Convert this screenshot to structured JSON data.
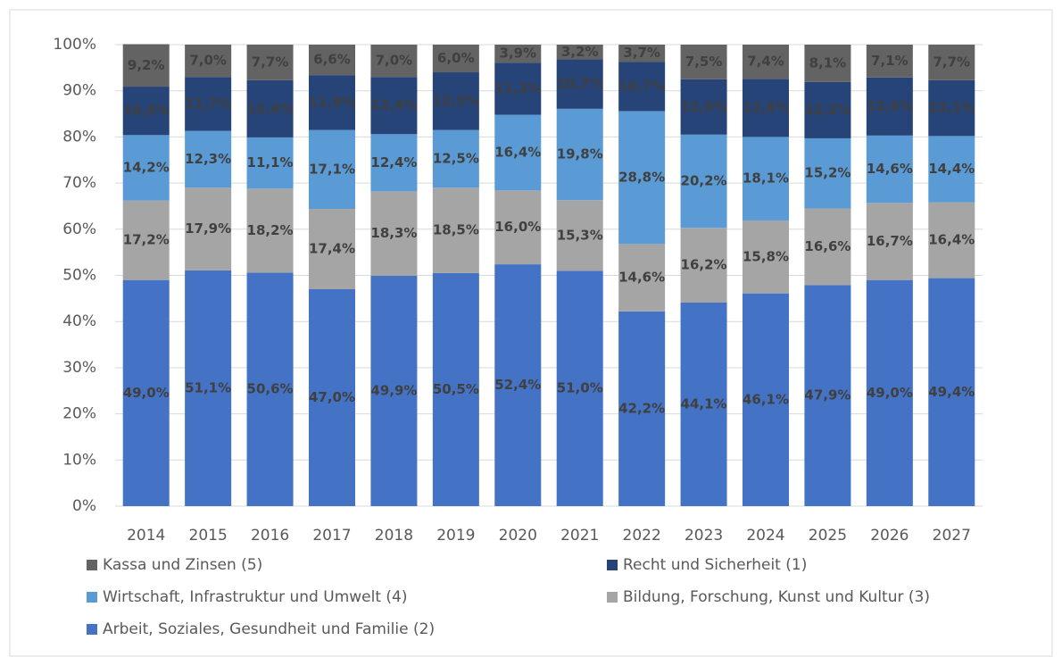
{
  "chart_data": {
    "type": "stacked_bar",
    "categories": [
      "2014",
      "2015",
      "2016",
      "2017",
      "2018",
      "2019",
      "2020",
      "2021",
      "2022",
      "2023",
      "2024",
      "2025",
      "2026",
      "2027"
    ],
    "series": [
      {
        "name": "Arbeit, Soziales, Gesundheit und Familie (2)",
        "color": "#4472c4",
        "values": [
          49.0,
          51.1,
          50.6,
          47.0,
          49.9,
          50.5,
          52.4,
          51.0,
          42.2,
          44.1,
          46.1,
          47.9,
          49.0,
          49.4
        ],
        "value_labels": [
          "49,0%",
          "51,1%",
          "50,6%",
          "47,0%",
          "49,9%",
          "50,5%",
          "52,4%",
          "51,0%",
          "42,2%",
          "44,1%",
          "46,1%",
          "47,9%",
          "49,0%",
          "49,4%"
        ]
      },
      {
        "name": "Bildung, Forschung, Kunst und Kultur (3)",
        "color": "#a5a5a5",
        "values": [
          17.2,
          17.9,
          18.2,
          17.4,
          18.3,
          18.5,
          16.0,
          15.3,
          14.6,
          16.2,
          15.8,
          16.6,
          16.7,
          16.4
        ],
        "value_labels": [
          "17,2%",
          "17,9%",
          "18,2%",
          "17,4%",
          "18,3%",
          "18,5%",
          "16,0%",
          "15,3%",
          "14,6%",
          "16,2%",
          "15,8%",
          "16,6%",
          "16,7%",
          "16,4%"
        ]
      },
      {
        "name": "Wirtschaft, Infrastruktur und Umwelt (4)",
        "color": "#5b9bd5",
        "values": [
          14.2,
          12.3,
          11.1,
          17.1,
          12.4,
          12.5,
          16.4,
          19.8,
          28.8,
          20.2,
          18.1,
          15.2,
          14.6,
          14.4
        ],
        "value_labels": [
          "14,2%",
          "12,3%",
          "11,1%",
          "17,1%",
          "12,4%",
          "12,5%",
          "16,4%",
          "19,8%",
          "28,8%",
          "20,2%",
          "18,1%",
          "15,2%",
          "14,6%",
          "14,4%"
        ]
      },
      {
        "name": "Recht und Sicherheit (1)",
        "color": "#264478",
        "values": [
          10.5,
          11.7,
          12.4,
          11.9,
          12.4,
          12.5,
          11.3,
          10.7,
          10.7,
          12.0,
          12.6,
          12.2,
          12.6,
          12.1
        ],
        "value_labels": [
          "10,5%",
          "11,7%",
          "12,4%",
          "11,9%",
          "12,4%",
          "12,5%",
          "11,3%",
          "10,7%",
          "10,7%",
          "12,0%",
          "12,6%",
          "12,2%",
          "12,6%",
          "12,1%"
        ]
      },
      {
        "name": "Kassa und Zinsen (5)",
        "color": "#636363",
        "values": [
          9.2,
          7.0,
          7.7,
          6.6,
          7.0,
          6.0,
          3.9,
          3.2,
          3.7,
          7.5,
          7.4,
          8.1,
          7.1,
          7.7
        ],
        "value_labels": [
          "9,2%",
          "7,0%",
          "7,7%",
          "6,6%",
          "7,0%",
          "6,0%",
          "3,9%",
          "3,2%",
          "3,7%",
          "7,5%",
          "7,4%",
          "8,1%",
          "7,1%",
          "7,7%"
        ]
      }
    ],
    "ylim": [
      0,
      100
    ],
    "yticks": [
      {
        "value": 0,
        "label": "0%"
      },
      {
        "value": 10,
        "label": "10%"
      },
      {
        "value": 20,
        "label": "20%"
      },
      {
        "value": 30,
        "label": "30%"
      },
      {
        "value": 40,
        "label": "40%"
      },
      {
        "value": 50,
        "label": "50%"
      },
      {
        "value": 60,
        "label": "60%"
      },
      {
        "value": 70,
        "label": "70%"
      },
      {
        "value": 80,
        "label": "80%"
      },
      {
        "value": 90,
        "label": "90%"
      },
      {
        "value": 100,
        "label": "100%"
      }
    ],
    "grid": true,
    "legend": "bottom"
  }
}
